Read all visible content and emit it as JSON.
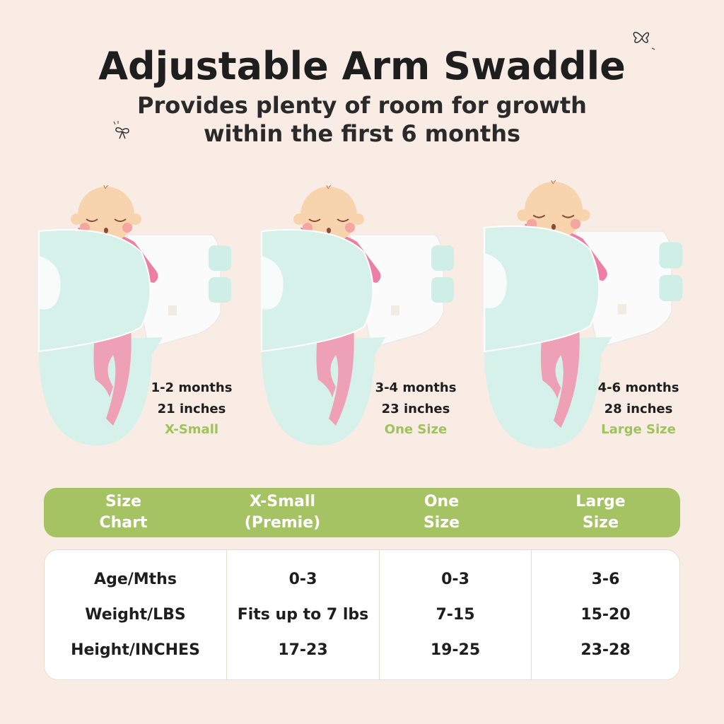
{
  "title": "Adjustable Arm Swaddle",
  "subtitle_lines": [
    "Provides plenty of room for growth",
    "within the first 6 months"
  ],
  "colors": {
    "background": "#f9ece4",
    "accent_green": "#a5c363",
    "swaddle_mint": "#d6f0ea",
    "sleeve_pink": "#ec7fa3"
  },
  "figures": [
    {
      "age": "1-2 months",
      "length": "21 inches",
      "size": "X-Small"
    },
    {
      "age": "3-4 months",
      "length": "23 inches",
      "size": "One Size"
    },
    {
      "age": "4-6 months",
      "length": "28 inches",
      "size": "Large Size"
    }
  ],
  "table": {
    "headers": [
      "Size\nChart",
      "X-Small\n(Premie)",
      "One\nSize",
      "Large\nSize"
    ],
    "row_labels": [
      "Age/Mths",
      "Weight/LBS",
      "Height/INCHES"
    ],
    "columns": [
      [
        "0-3",
        "Fits up to 7 lbs",
        "17-23"
      ],
      [
        "0-3",
        "7-15",
        "19-25"
      ],
      [
        "3-6",
        "15-20",
        "23-28"
      ]
    ]
  }
}
